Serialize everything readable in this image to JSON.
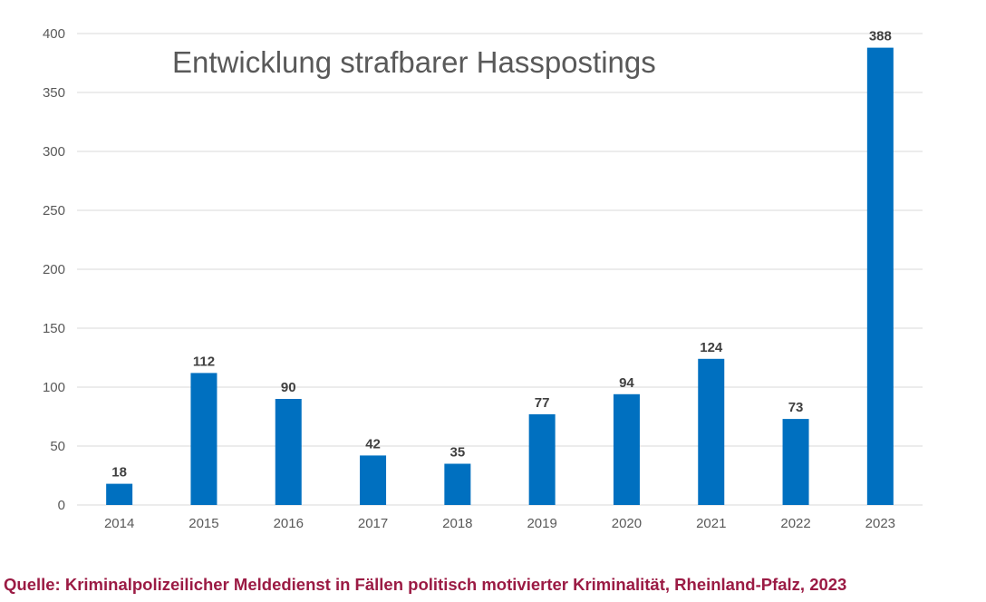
{
  "chart_data": {
    "type": "bar",
    "title": "Entwicklung strafbarer Hasspostings",
    "categories": [
      "2014",
      "2015",
      "2016",
      "2017",
      "2018",
      "2019",
      "2020",
      "2021",
      "2022",
      "2023"
    ],
    "values": [
      18,
      112,
      90,
      42,
      35,
      77,
      94,
      124,
      73,
      388
    ],
    "ylim": [
      0,
      400
    ],
    "yticks": [
      0,
      50,
      100,
      150,
      200,
      250,
      300,
      350,
      400
    ],
    "grid": true,
    "data_labels": true,
    "bar_color": "#0070c0",
    "grid_color": "#d9d9d9",
    "tick_label_color": "#595959",
    "data_label_color": "#404040"
  },
  "source": "Quelle: Kriminalpolizeilicher Meldedienst in Fällen politisch motivierter Kriminalität, Rheinland-Pfalz, 2023",
  "colors": {
    "title": "#595959",
    "source": "#9b1b44"
  }
}
